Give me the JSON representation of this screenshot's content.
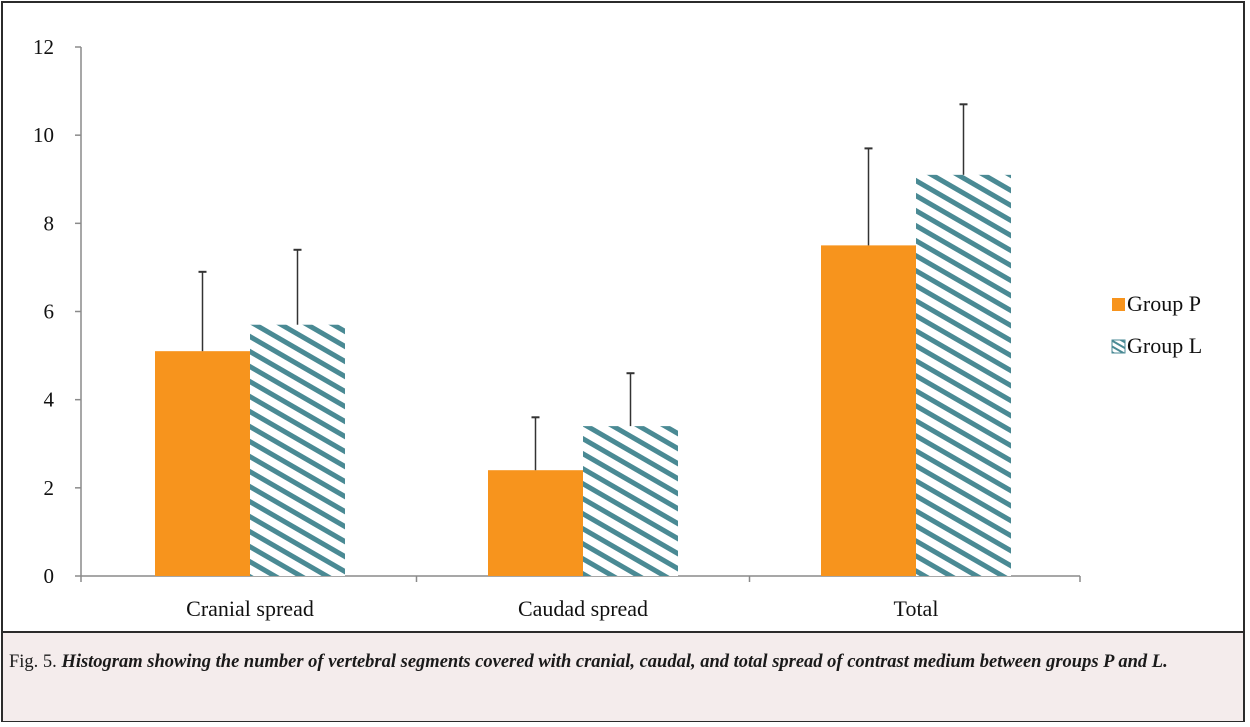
{
  "chart_data": {
    "type": "bar",
    "categories": [
      "Cranial spread",
      "Caudad spread",
      "Total"
    ],
    "series": [
      {
        "name": "Group P",
        "values": [
          5.1,
          2.4,
          7.5
        ],
        "error": [
          1.8,
          1.2,
          2.2
        ]
      },
      {
        "name": "Group L",
        "values": [
          5.7,
          3.4,
          9.1
        ],
        "error": [
          1.7,
          1.2,
          1.6
        ]
      }
    ],
    "yticks": [
      "0",
      "2",
      "4",
      "6",
      "8",
      "10",
      "12"
    ],
    "ylim": [
      0,
      12
    ],
    "legend_position": "right",
    "grid": false,
    "colors": {
      "group_p": "#f7941d",
      "group_l_stripe": "#4a8a94",
      "axis": "#7f7f7f"
    }
  },
  "caption": {
    "label": "Fig. 5.",
    "text": "Histogram showing the number of vertebral segments covered with cranial, caudal, and total spread of contrast medium between groups P and L."
  }
}
